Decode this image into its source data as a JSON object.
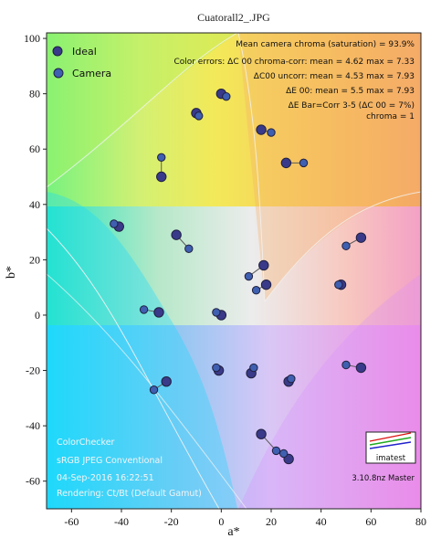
{
  "colors": {
    "ideal_fill": "#3a3a8a",
    "camera_fill": "#3f5fb0"
  },
  "chart_data": {
    "type": "scatter",
    "title": "Cuatorall2_.JPG",
    "xlabel": "a*",
    "ylabel": "b*",
    "xlim": [
      -70,
      80
    ],
    "ylim": [
      -70,
      102
    ],
    "xticks": [
      -60,
      -40,
      -20,
      0,
      20,
      40,
      60,
      80
    ],
    "yticks": [
      -60,
      -40,
      -20,
      0,
      20,
      40,
      60,
      80,
      100
    ],
    "legend": {
      "position": "top-left",
      "entries": [
        "Ideal",
        "Camera"
      ]
    },
    "series": [
      {
        "name": "Ideal",
        "points": [
          [
            26,
            55
          ],
          [
            16,
            67
          ],
          [
            -10,
            73
          ],
          [
            0,
            80
          ],
          [
            -24,
            50
          ],
          [
            -41,
            32
          ],
          [
            -18,
            29
          ],
          [
            17,
            18
          ],
          [
            56,
            28
          ],
          [
            0,
            0
          ],
          [
            -25,
            1
          ],
          [
            -22,
            -24
          ],
          [
            -1,
            -20
          ],
          [
            12,
            -21
          ],
          [
            27,
            -24
          ],
          [
            16,
            -43
          ],
          [
            27,
            -52
          ],
          [
            56,
            -19
          ],
          [
            48,
            11
          ],
          [
            18,
            11
          ]
        ]
      },
      {
        "name": "Camera",
        "points": [
          [
            33,
            55
          ],
          [
            20,
            66
          ],
          [
            -9,
            72
          ],
          [
            2,
            79
          ],
          [
            -24,
            57
          ],
          [
            -43,
            33
          ],
          [
            -13,
            24
          ],
          [
            11,
            14
          ],
          [
            50,
            25
          ],
          [
            -2,
            1
          ],
          [
            -31,
            2
          ],
          [
            -27,
            -27
          ],
          [
            -2,
            -19
          ],
          [
            13,
            -19
          ],
          [
            28,
            -23
          ],
          [
            22,
            -49
          ],
          [
            25,
            -50
          ],
          [
            50,
            -18
          ],
          [
            47,
            11
          ],
          [
            14,
            9
          ]
        ]
      }
    ],
    "overlay_text": {
      "top_right": [
        "Mean camera chroma (saturation) = 93.9%",
        "Color errors: ΔC 00 chroma-corr:  mean = 4.62    max = 7.33",
        "ΔC00 uncorr:  mean = 4.53    max = 7.93",
        "ΔE 00:  mean = 5.5    max = 7.93",
        "ΔE Bar=Corr 3-5 (ΔC 00 = 7%)",
        "chroma = 1"
      ],
      "bottom_left": [
        "ColorChecker",
        "sRGB  JPEG  Conventional",
        "04-Sep-2016 16:22:51",
        "Rendering:  Ct/Bt (Default Gamut)"
      ],
      "bottom_right": [
        "imatest",
        "3.10.8nz   Master"
      ]
    }
  }
}
